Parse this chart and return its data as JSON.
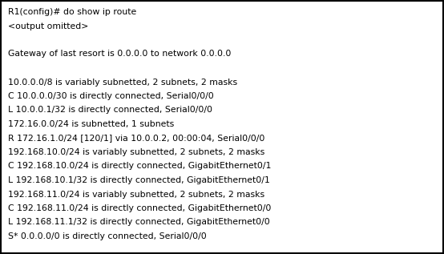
{
  "lines": [
    "R1(config)# do show ip route",
    "<output omitted>",
    "",
    "Gateway of last resort is 0.0.0.0 to network 0.0.0.0",
    "",
    "10.0.0.0/8 is variably subnetted, 2 subnets, 2 masks",
    "C 10.0.0.0/30 is directly connected, Serial0/0/0",
    "L 10.0.0.1/32 is directly connected, Serial0/0/0",
    "172.16.0.0/24 is subnetted, 1 subnets",
    "R 172.16.1.0/24 [120/1] via 10.0.0.2, 00:00:04, Serial0/0/0",
    "192.168.10.0/24 is variably subnetted, 2 subnets, 2 masks",
    "C 192.168.10.0/24 is directly connected, GigabitEthernet0/1",
    "L 192.168.10.1/32 is directly connected, GigabitEthernet0/1",
    "192.168.11.0/24 is variably subnetted, 2 subnets, 2 masks",
    "C 192.168.11.0/24 is directly connected, GigabitEthernet0/0",
    "L 192.168.11.1/32 is directly connected, GigabitEthernet0/0",
    "S* 0.0.0.0/0 is directly connected, Serial0/0/0"
  ],
  "bg_color": "#ffffff",
  "text_color": "#000000",
  "border_color": "#000000",
  "font_size": 7.85,
  "font_family": "Courier New"
}
